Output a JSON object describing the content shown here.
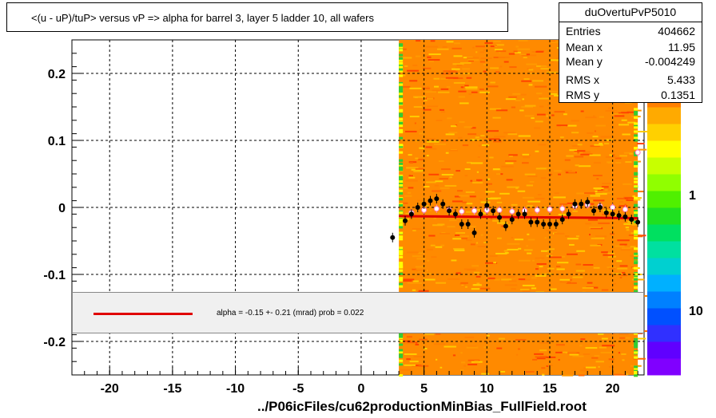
{
  "title": "<(u - uP)/tuP>  versus   vP => alpha for barrel 3, layer 5 ladder 10, all wafers",
  "stats": {
    "name": "duOvertuPvP5010",
    "rows": [
      {
        "label": "Entries",
        "value": "404662"
      },
      {
        "label": "Mean x",
        "value": "11.95"
      },
      {
        "label": "Mean y",
        "value": "-0.004249"
      },
      {
        "label": "RMS x",
        "value": "5.433"
      },
      {
        "label": "RMS y",
        "value": "0.1351"
      }
    ]
  },
  "fit_legend": "alpha =   -0.15 +-  0.21 (mrad) prob = 0.022",
  "footer": "../P06icFiles/cu62productionMinBias_FullField.root",
  "colors": {
    "fit_line": "#e00000",
    "profile_points": "#000000",
    "open_points": "#ff80c0"
  },
  "chart_data": {
    "type": "heatmap",
    "xlim": [
      -23,
      22.5
    ],
    "ylim": [
      -0.25,
      0.25
    ],
    "x_ticks": [
      -20,
      -15,
      -10,
      -5,
      0,
      5,
      10,
      15,
      20
    ],
    "y_ticks": [
      -0.2,
      -0.1,
      0,
      0.1,
      0.2
    ],
    "x_tick_labels": [
      "-20",
      "-15",
      "-10",
      "-5",
      "0",
      "5",
      "10",
      "15",
      "20"
    ],
    "y_tick_labels": [
      "-0.2",
      "-0.1",
      "0",
      "0.1",
      "0.2"
    ],
    "grid": true,
    "heatmap_x_range": [
      3,
      22
    ],
    "colorbar_labels": [
      "1",
      "10"
    ],
    "profile_points": {
      "x": [
        2.5,
        3.5,
        4,
        4.5,
        5,
        5.5,
        6,
        6.5,
        7,
        7.5,
        8,
        8.5,
        9,
        9.5,
        10,
        10.5,
        11,
        11.5,
        12,
        12.5,
        13,
        13.5,
        14,
        14.5,
        15,
        15.5,
        16,
        16.5,
        17,
        17.5,
        18,
        18.5,
        19,
        19.5,
        20,
        20.5,
        21,
        21.5,
        22
      ],
      "y": [
        -0.045,
        -0.02,
        -0.01,
        0.0,
        0.005,
        0.01,
        0.013,
        0.005,
        -0.005,
        -0.01,
        -0.025,
        -0.025,
        -0.038,
        -0.01,
        0.003,
        -0.005,
        -0.015,
        -0.028,
        -0.018,
        -0.01,
        -0.01,
        -0.022,
        -0.022,
        -0.025,
        -0.025,
        -0.025,
        -0.018,
        -0.01,
        0.005,
        0.005,
        0.008,
        -0.005,
        0.0,
        -0.008,
        -0.01,
        -0.012,
        -0.014,
        -0.018,
        -0.022
      ]
    },
    "open_points": {
      "x": [
        4,
        5,
        6,
        7,
        8,
        9,
        10,
        11,
        12,
        13,
        14,
        15,
        16,
        17,
        18,
        19,
        20,
        21,
        22
      ],
      "y": [
        -0.008,
        -0.004,
        -0.002,
        -0.004,
        -0.006,
        -0.005,
        -0.004,
        -0.004,
        -0.006,
        -0.005,
        -0.004,
        -0.003,
        -0.002,
        0.002,
        0.004,
        0.002,
        0.0,
        -0.003,
        0.082
      ]
    },
    "fit_line": {
      "x": [
        3,
        22
      ],
      "y": [
        -0.013,
        -0.016
      ]
    }
  }
}
